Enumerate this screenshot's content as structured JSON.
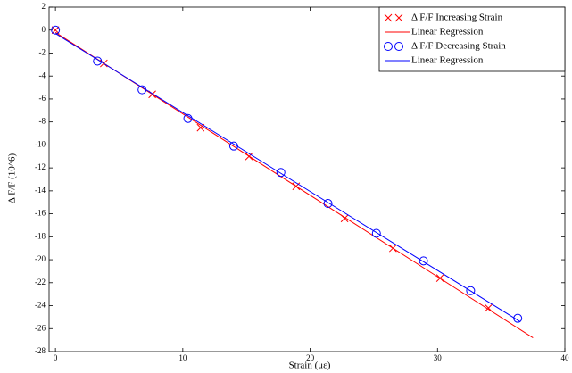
{
  "chart_data": {
    "type": "scatter",
    "xlabel": "Strain (με)",
    "ylabel": "Δ F/F (10^6)",
    "xlim": [
      -0.5,
      40
    ],
    "ylim": [
      -28,
      2
    ],
    "xticks": [
      0,
      10,
      20,
      30,
      40
    ],
    "yticks": [
      2,
      0,
      -2,
      -4,
      -6,
      -8,
      -10,
      -12,
      -14,
      -16,
      -18,
      -20,
      -22,
      -24,
      -26,
      -28
    ],
    "legend": "top-right",
    "series": [
      {
        "name": "Δ F/F Increasing Strain",
        "color": "#ff0000",
        "marker": "x",
        "x": [
          0,
          3.8,
          7.6,
          11.4,
          15.2,
          18.9,
          22.7,
          26.5,
          30.2,
          34
        ],
        "values": [
          0,
          -2.9,
          -5.6,
          -8.5,
          -11.0,
          -13.6,
          -16.4,
          -19.0,
          -21.6,
          -24.2
        ]
      },
      {
        "name": "Linear Regression",
        "color": "#ff0000",
        "marker": "line",
        "x": [
          0,
          37.5
        ],
        "values": [
          -0.2,
          -26.8
        ]
      },
      {
        "name": "Δ F/F Decreasing Strain",
        "color": "#0000ff",
        "marker": "o",
        "x": [
          0,
          3.3,
          6.8,
          10.4,
          14,
          17.7,
          21.4,
          25.2,
          28.9,
          32.6,
          36.3
        ],
        "values": [
          0,
          -2.7,
          -5.2,
          -7.7,
          -10.1,
          -12.4,
          -15.1,
          -17.7,
          -20.1,
          -22.7,
          -25.1
        ]
      },
      {
        "name": "Linear Regression",
        "color": "#0000ff",
        "marker": "line",
        "x": [
          0,
          36.5
        ],
        "values": [
          -0.3,
          -25.4
        ]
      }
    ]
  }
}
